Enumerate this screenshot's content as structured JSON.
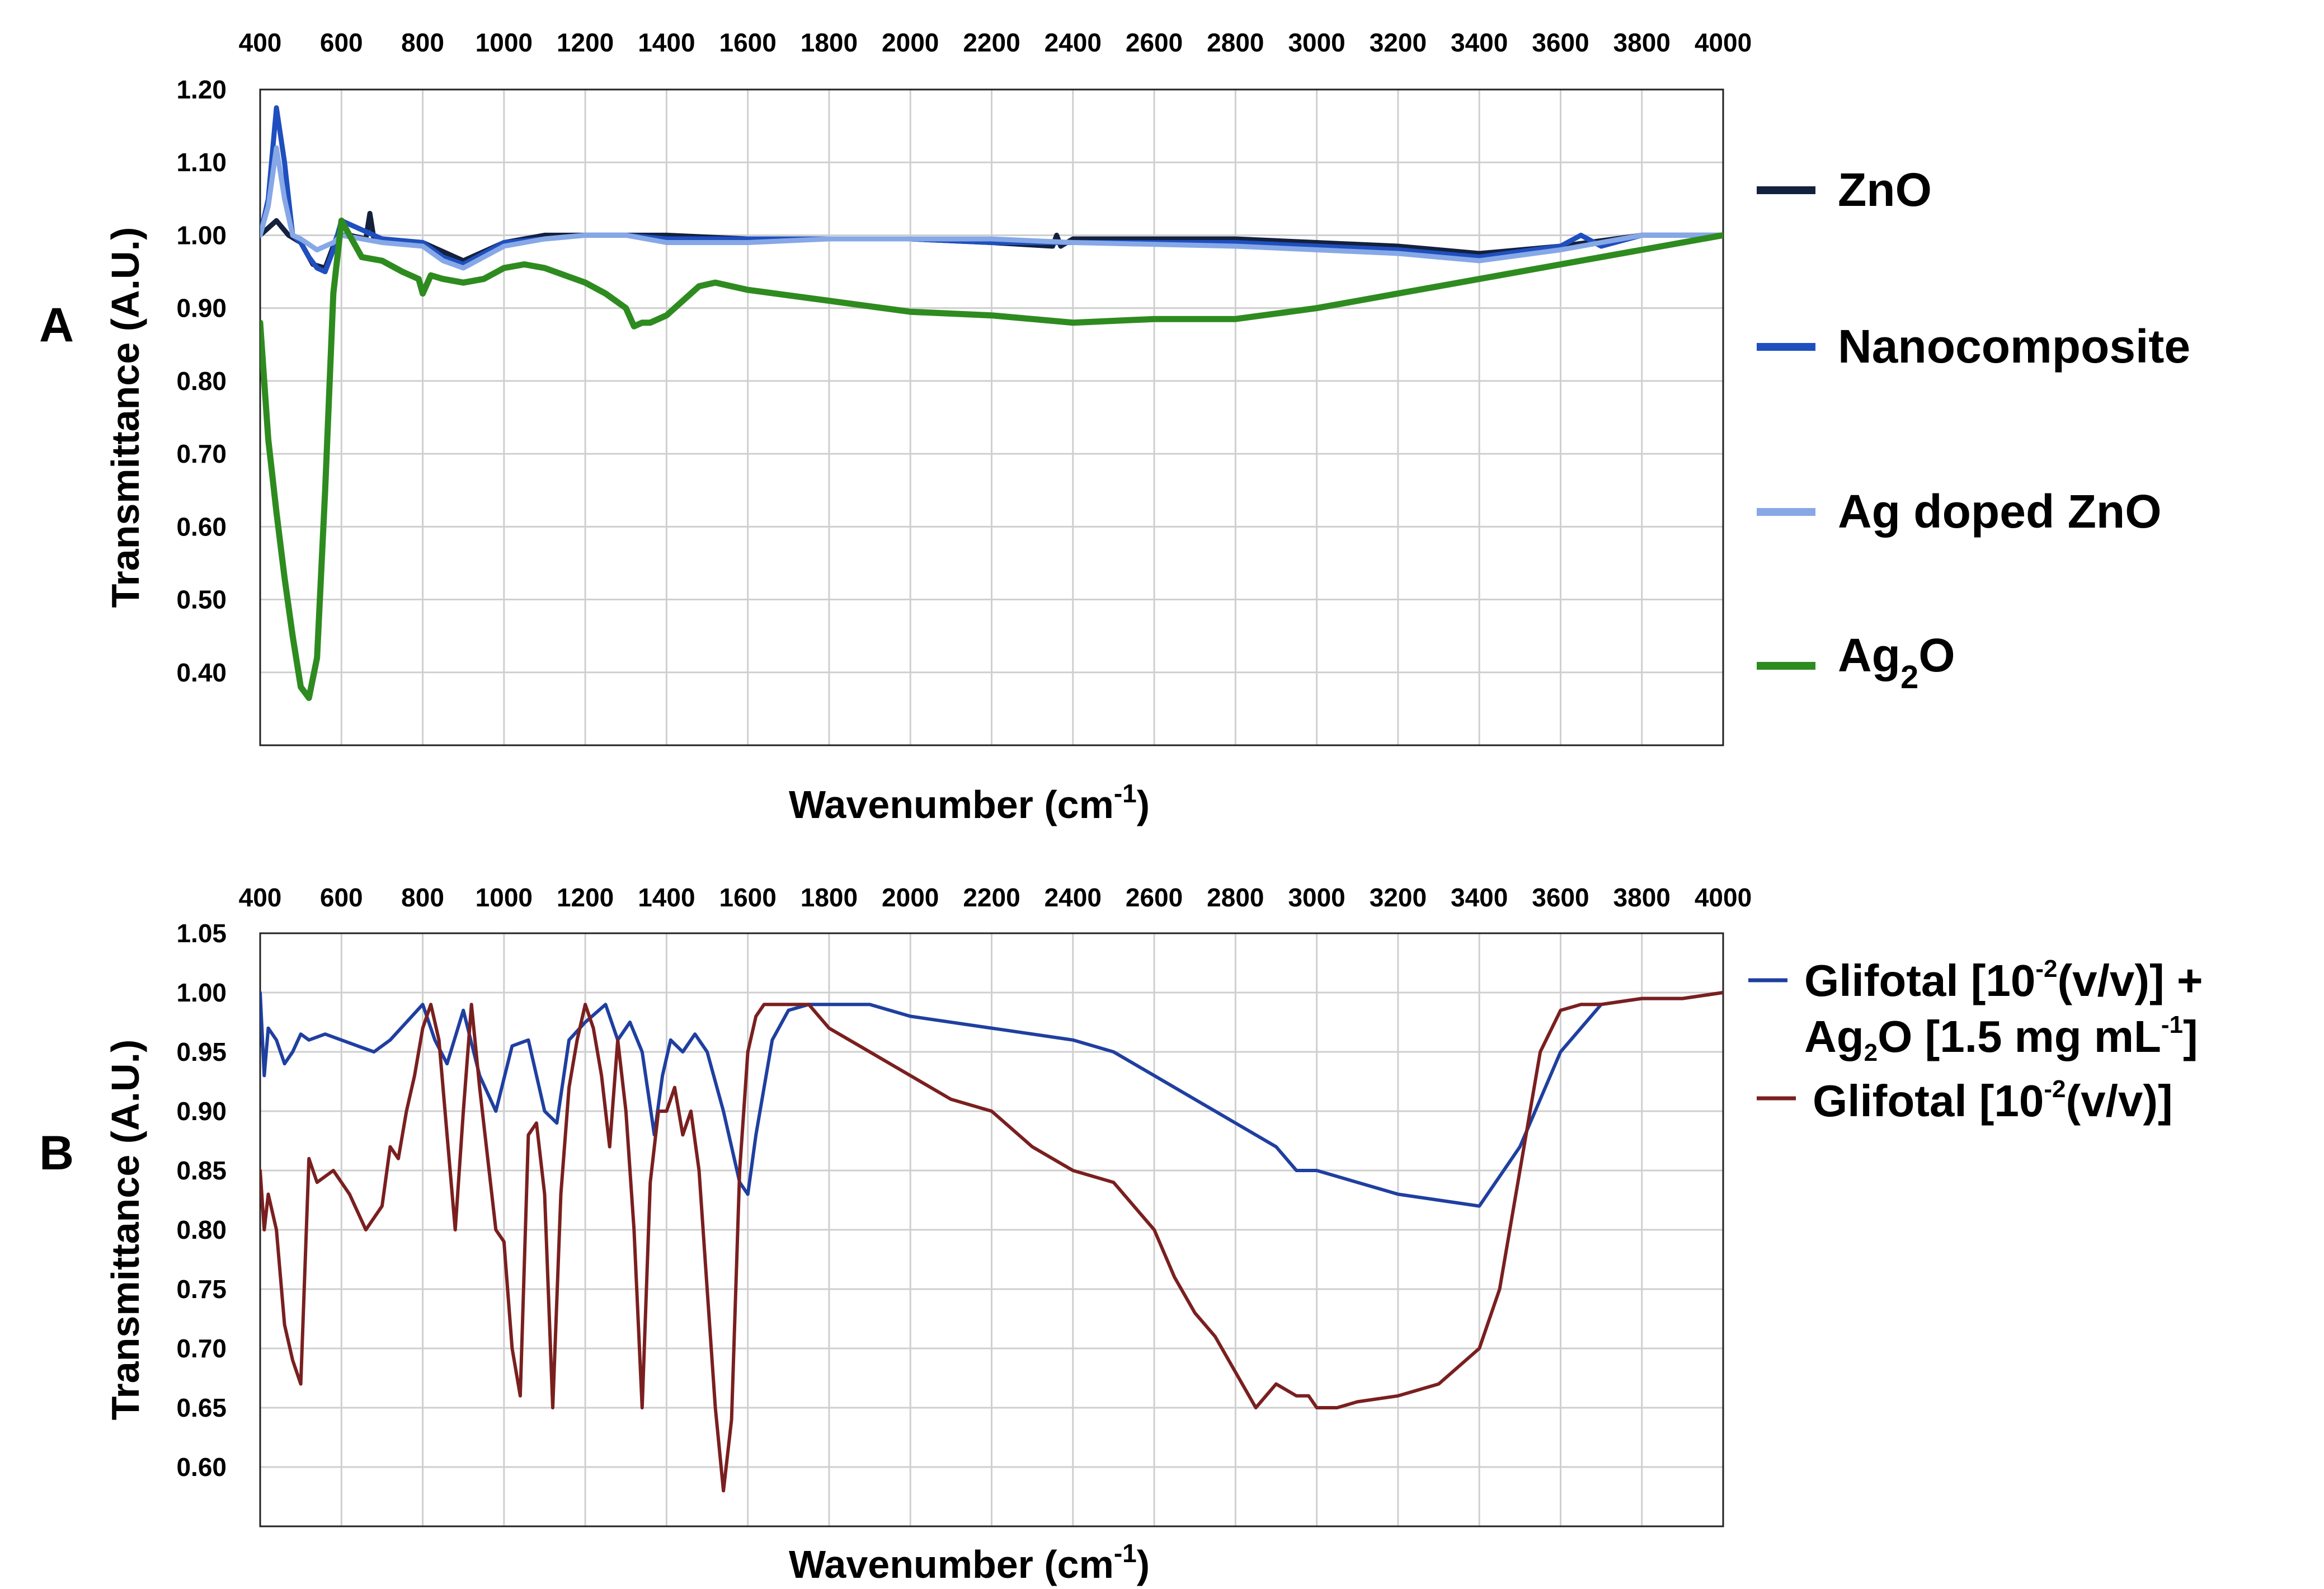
{
  "chart_data": [
    {
      "panel_label": "A",
      "type": "line",
      "xlabel": {
        "main": "Wavenumber (cm",
        "sup": "-1",
        "close": ")"
      },
      "ylabel": "Transmittance (A.U.)",
      "xlim": [
        400,
        4000
      ],
      "ylim": [
        0.3,
        1.2
      ],
      "x_ticks": [
        "400",
        "600",
        "800",
        "1000",
        "1200",
        "1400",
        "1600",
        "1800",
        "2000",
        "2200",
        "2400",
        "2600",
        "2800",
        "3000",
        "3200",
        "3400",
        "3600",
        "3800",
        "4000"
      ],
      "y_ticks": [
        "1.20",
        "1.10",
        "1.00",
        "0.90",
        "0.80",
        "0.70",
        "0.60",
        "0.50",
        "0.40"
      ],
      "y_tick_values": [
        1.2,
        1.1,
        1.0,
        0.9,
        0.8,
        0.7,
        0.6,
        0.5,
        0.4
      ],
      "grid": true,
      "legend_position": "right",
      "series": [
        {
          "name": "ZnO",
          "color": "#14213d",
          "x": [
            400,
            440,
            470,
            500,
            530,
            560,
            590,
            620,
            660,
            670,
            680,
            700,
            800,
            900,
            1000,
            1100,
            1200,
            1300,
            1400,
            1600,
            1800,
            2000,
            2200,
            2350,
            2360,
            2370,
            2400,
            2800,
            3000,
            3200,
            3400,
            3600,
            3800,
            4000
          ],
          "y": [
            1.0,
            1.02,
            1.0,
            0.99,
            0.96,
            0.955,
            1.0,
            1.0,
            0.995,
            1.03,
            0.995,
            0.995,
            0.99,
            0.965,
            0.99,
            1.0,
            1.0,
            1.0,
            1.0,
            0.995,
            0.995,
            0.995,
            0.99,
            0.985,
            1.0,
            0.985,
            0.995,
            0.995,
            0.99,
            0.985,
            0.975,
            0.985,
            1.0,
            1.0
          ]
        },
        {
          "name": "Nanocomposite",
          "color": "#1f4fbf",
          "x": [
            400,
            420,
            440,
            460,
            480,
            500,
            520,
            540,
            560,
            580,
            600,
            700,
            800,
            850,
            900,
            1000,
            1100,
            1200,
            1300,
            1400,
            1600,
            1800,
            2000,
            2200,
            2400,
            2800,
            3000,
            3200,
            3400,
            3600,
            3650,
            3700,
            3800,
            4000
          ],
          "y": [
            1.0,
            1.05,
            1.175,
            1.1,
            1.0,
            0.99,
            0.97,
            0.955,
            0.95,
            0.98,
            1.02,
            0.995,
            0.99,
            0.97,
            0.96,
            0.99,
            0.995,
            1.0,
            1.0,
            0.995,
            0.995,
            0.995,
            0.995,
            0.99,
            0.99,
            0.99,
            0.985,
            0.98,
            0.97,
            0.985,
            1.0,
            0.985,
            1.0,
            1.0
          ]
        },
        {
          "name": "Ag doped ZnO",
          "color": "#86a8e7",
          "x": [
            400,
            420,
            440,
            460,
            480,
            500,
            540,
            580,
            600,
            700,
            800,
            850,
            900,
            1000,
            1100,
            1200,
            1300,
            1400,
            1600,
            1800,
            2000,
            2200,
            2400,
            2800,
            3000,
            3200,
            3400,
            3600,
            3700,
            3800,
            4000
          ],
          "y": [
            1.0,
            1.04,
            1.12,
            1.05,
            1.0,
            0.995,
            0.98,
            0.99,
            1.0,
            0.99,
            0.985,
            0.965,
            0.955,
            0.985,
            0.995,
            1.0,
            1.0,
            0.99,
            0.99,
            0.995,
            0.995,
            0.995,
            0.99,
            0.985,
            0.98,
            0.975,
            0.965,
            0.98,
            0.99,
            1.0,
            1.0
          ]
        },
        {
          "name": "Ag₂O",
          "color": "#2e8b1f",
          "x": [
            400,
            420,
            440,
            460,
            480,
            500,
            520,
            540,
            560,
            580,
            600,
            620,
            650,
            700,
            750,
            790,
            800,
            820,
            850,
            900,
            950,
            1000,
            1050,
            1100,
            1150,
            1200,
            1250,
            1300,
            1320,
            1340,
            1360,
            1400,
            1440,
            1480,
            1520,
            1600,
            1800,
            2000,
            2200,
            2400,
            2600,
            2800,
            3000,
            3200,
            3400,
            3600,
            3800,
            4000
          ],
          "y": [
            0.88,
            0.72,
            0.62,
            0.53,
            0.45,
            0.38,
            0.365,
            0.42,
            0.65,
            0.92,
            1.02,
            1.0,
            0.97,
            0.965,
            0.95,
            0.94,
            0.92,
            0.945,
            0.94,
            0.935,
            0.94,
            0.955,
            0.96,
            0.955,
            0.945,
            0.935,
            0.92,
            0.9,
            0.875,
            0.88,
            0.88,
            0.89,
            0.91,
            0.93,
            0.935,
            0.925,
            0.91,
            0.895,
            0.89,
            0.88,
            0.885,
            0.885,
            0.9,
            0.92,
            0.94,
            0.96,
            0.98,
            1.0
          ]
        }
      ]
    },
    {
      "panel_label": "B",
      "type": "line",
      "xlabel": {
        "main": "Wavenumber (cm",
        "sup": "-1",
        "close": ")"
      },
      "ylabel": "Transmittance (A.U.)",
      "xlim": [
        400,
        4000
      ],
      "ylim": [
        0.55,
        1.05
      ],
      "x_ticks": [
        "400",
        "600",
        "800",
        "1000",
        "1200",
        "1400",
        "1600",
        "1800",
        "2000",
        "2200",
        "2400",
        "2600",
        "2800",
        "3000",
        "3200",
        "3400",
        "3600",
        "3800",
        "4000"
      ],
      "y_ticks": [
        "1.05",
        "1.00",
        "0.95",
        "0.90",
        "0.85",
        "0.80",
        "0.75",
        "0.70",
        "0.65",
        "0.60"
      ],
      "y_tick_values": [
        1.05,
        1.0,
        0.95,
        0.9,
        0.85,
        0.8,
        0.75,
        0.7,
        0.65,
        0.6
      ],
      "grid": true,
      "legend_position": "right",
      "series": [
        {
          "name": "Glifotal [10-2(v/v)] + Ag2O [1.5 mg mL-1]",
          "color": "#1f3fa0",
          "x": [
            400,
            410,
            420,
            440,
            460,
            480,
            500,
            520,
            560,
            600,
            640,
            680,
            720,
            760,
            800,
            830,
            860,
            900,
            940,
            980,
            1020,
            1060,
            1100,
            1130,
            1160,
            1200,
            1250,
            1280,
            1310,
            1340,
            1370,
            1390,
            1410,
            1440,
            1470,
            1500,
            1540,
            1580,
            1600,
            1620,
            1660,
            1700,
            1750,
            1800,
            1900,
            2000,
            2200,
            2400,
            2500,
            2600,
            2700,
            2800,
            2900,
            2950,
            3000,
            3100,
            3200,
            3300,
            3400,
            3500,
            3600,
            3700,
            3800,
            3900,
            4000
          ],
          "y": [
            1.0,
            0.93,
            0.97,
            0.96,
            0.94,
            0.95,
            0.965,
            0.96,
            0.965,
            0.96,
            0.955,
            0.95,
            0.96,
            0.975,
            0.99,
            0.96,
            0.94,
            0.985,
            0.93,
            0.9,
            0.955,
            0.96,
            0.9,
            0.89,
            0.96,
            0.975,
            0.99,
            0.96,
            0.975,
            0.95,
            0.88,
            0.93,
            0.96,
            0.95,
            0.965,
            0.95,
            0.9,
            0.84,
            0.83,
            0.88,
            0.96,
            0.985,
            0.99,
            0.99,
            0.99,
            0.98,
            0.97,
            0.96,
            0.95,
            0.93,
            0.91,
            0.89,
            0.87,
            0.85,
            0.85,
            0.84,
            0.83,
            0.825,
            0.82,
            0.87,
            0.95,
            0.99,
            0.995,
            0.995,
            1.0
          ]
        },
        {
          "name": "Glifotal [10-2(v/v)]",
          "color": "#7a1f1f",
          "x": [
            400,
            410,
            420,
            440,
            460,
            480,
            500,
            520,
            540,
            580,
            620,
            660,
            700,
            720,
            740,
            760,
            780,
            800,
            820,
            840,
            860,
            880,
            900,
            920,
            940,
            960,
            980,
            1000,
            1020,
            1040,
            1060,
            1080,
            1100,
            1120,
            1140,
            1160,
            1180,
            1200,
            1220,
            1240,
            1260,
            1280,
            1300,
            1320,
            1340,
            1360,
            1380,
            1400,
            1420,
            1440,
            1460,
            1480,
            1500,
            1520,
            1540,
            1560,
            1580,
            1600,
            1620,
            1640,
            1660,
            1700,
            1750,
            1800,
            1900,
            2000,
            2100,
            2200,
            2300,
            2400,
            2500,
            2550,
            2600,
            2650,
            2700,
            2750,
            2800,
            2850,
            2900,
            2950,
            2980,
            3000,
            3050,
            3100,
            3200,
            3300,
            3400,
            3450,
            3500,
            3550,
            3600,
            3650,
            3700,
            3800,
            3900,
            4000
          ],
          "y": [
            0.85,
            0.8,
            0.83,
            0.8,
            0.72,
            0.69,
            0.67,
            0.86,
            0.84,
            0.85,
            0.83,
            0.8,
            0.82,
            0.87,
            0.86,
            0.9,
            0.93,
            0.97,
            0.99,
            0.96,
            0.88,
            0.8,
            0.9,
            0.99,
            0.92,
            0.86,
            0.8,
            0.79,
            0.7,
            0.66,
            0.88,
            0.89,
            0.83,
            0.65,
            0.83,
            0.92,
            0.96,
            0.99,
            0.97,
            0.93,
            0.87,
            0.96,
            0.9,
            0.8,
            0.65,
            0.84,
            0.9,
            0.9,
            0.92,
            0.88,
            0.9,
            0.85,
            0.75,
            0.65,
            0.58,
            0.64,
            0.85,
            0.95,
            0.98,
            0.99,
            0.99,
            0.99,
            0.99,
            0.97,
            0.95,
            0.93,
            0.91,
            0.9,
            0.87,
            0.85,
            0.84,
            0.82,
            0.8,
            0.76,
            0.73,
            0.71,
            0.68,
            0.65,
            0.67,
            0.66,
            0.66,
            0.65,
            0.65,
            0.655,
            0.66,
            0.67,
            0.7,
            0.75,
            0.85,
            0.95,
            0.985,
            0.99,
            0.99,
            0.995,
            0.995,
            1.0
          ]
        }
      ]
    }
  ],
  "legend_b": {
    "entry1_line1": {
      "pre": "Glifotal [10",
      "sup": "-2",
      "post": "(v/v)] +"
    },
    "entry1_line2": {
      "pre": "Ag",
      "sub": "2",
      "post": "O [1.5 mg mL",
      "sup": "-1",
      "close": "]"
    },
    "entry2": {
      "pre": "Glifotal [10",
      "sup": "-2",
      "post": "(v/v)]"
    }
  },
  "legend_a_ag2o": {
    "pre": "Ag",
    "sub": "2",
    "post": "O"
  }
}
